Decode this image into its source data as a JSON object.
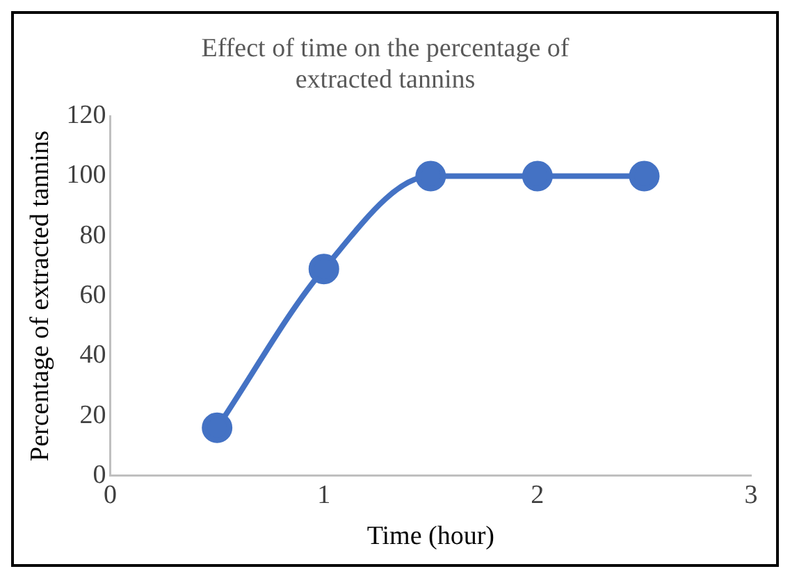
{
  "chart_data": {
    "type": "line",
    "title": "Effect of time on the percentage of extracted tannins",
    "xlabel": "Time (hour)",
    "ylabel": "Percentage of extracted tannins",
    "x": [
      0.5,
      1,
      1.5,
      2,
      2.5
    ],
    "series": [
      {
        "color": "#4472c4",
        "values": [
          16,
          69,
          100,
          100,
          100
        ]
      }
    ],
    "xlim": [
      0,
      3
    ],
    "xticks": [
      0,
      1,
      2,
      3
    ],
    "ylim": [
      0,
      120
    ],
    "yticks": [
      0,
      20,
      40,
      60,
      80,
      100,
      120
    ],
    "grid": false,
    "legend": false,
    "marker": "circle",
    "line_style": "solid"
  }
}
